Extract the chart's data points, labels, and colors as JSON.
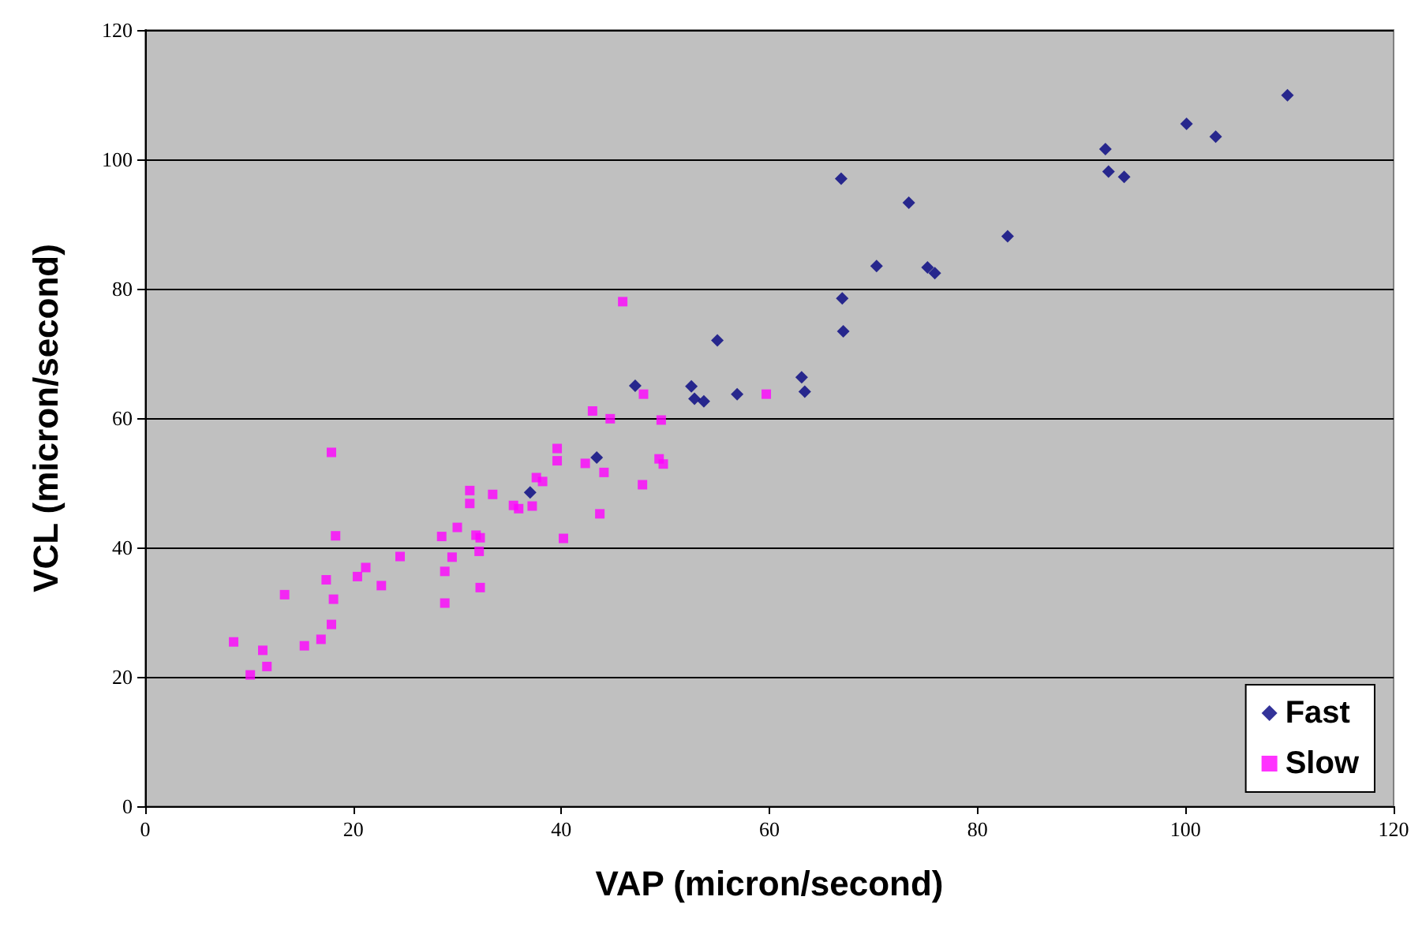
{
  "chart_data": {
    "type": "scatter",
    "xlabel": "VAP (micron/second)",
    "ylabel": "VCL (micron/second)",
    "xlim": [
      0,
      120
    ],
    "xticks": [
      0,
      20,
      40,
      60,
      80,
      100,
      120
    ],
    "ylim": [
      0,
      120
    ],
    "yticks": [
      0,
      20,
      40,
      60,
      80,
      100,
      120
    ],
    "grid": "y",
    "legend": "bottom right",
    "series": [
      {
        "name": "Fast",
        "color": "#000080",
        "marker": "diamond",
        "x": [
          109.8,
          100.1,
          102.9,
          92.3,
          92.6,
          94.1,
          66.9,
          73.4,
          82.9,
          70.3,
          75.2,
          75.9,
          67.0,
          67.1,
          63.1,
          63.4,
          55.0,
          47.1,
          52.5,
          52.8,
          53.7,
          56.9,
          43.4,
          37.0
        ],
        "values": [
          109.9,
          105.5,
          103.5,
          101.6,
          98.1,
          97.3,
          97.0,
          93.3,
          88.1,
          83.5,
          83.3,
          82.4,
          78.5,
          73.4,
          66.3,
          64.1,
          72.0,
          65.0,
          64.9,
          63.0,
          62.6,
          63.7,
          53.9,
          48.5
        ]
      },
      {
        "name": "Slow",
        "color": "#ff00ff",
        "marker": "square",
        "x": [
          59.7,
          45.9,
          47.9,
          43.0,
          44.7,
          49.6,
          39.6,
          39.6,
          42.3,
          44.1,
          49.4,
          49.8,
          37.6,
          38.2,
          33.4,
          31.2,
          31.2,
          47.8,
          35.4,
          35.9,
          37.2,
          43.7,
          40.2,
          30.0,
          31.8,
          32.2,
          32.1,
          28.5,
          29.5,
          28.8,
          32.2,
          17.9,
          18.3,
          24.5,
          21.2,
          20.4,
          17.4,
          22.7,
          13.4,
          18.1,
          28.8,
          17.9,
          16.9,
          15.3,
          8.5,
          11.3,
          11.7,
          10.1
        ],
        "values": [
          63.7,
          78.0,
          63.7,
          61.1,
          59.9,
          59.7,
          55.3,
          53.4,
          53.0,
          51.6,
          53.7,
          52.9,
          50.8,
          50.2,
          48.2,
          48.8,
          46.8,
          49.7,
          46.5,
          46.0,
          46.4,
          45.2,
          41.4,
          43.1,
          41.9,
          41.5,
          39.4,
          41.7,
          38.5,
          36.3,
          33.8,
          54.7,
          41.8,
          38.6,
          36.9,
          35.5,
          35.0,
          34.1,
          32.7,
          32.0,
          31.4,
          28.1,
          25.8,
          24.8,
          25.4,
          24.1,
          21.6,
          20.3
        ]
      }
    ]
  }
}
